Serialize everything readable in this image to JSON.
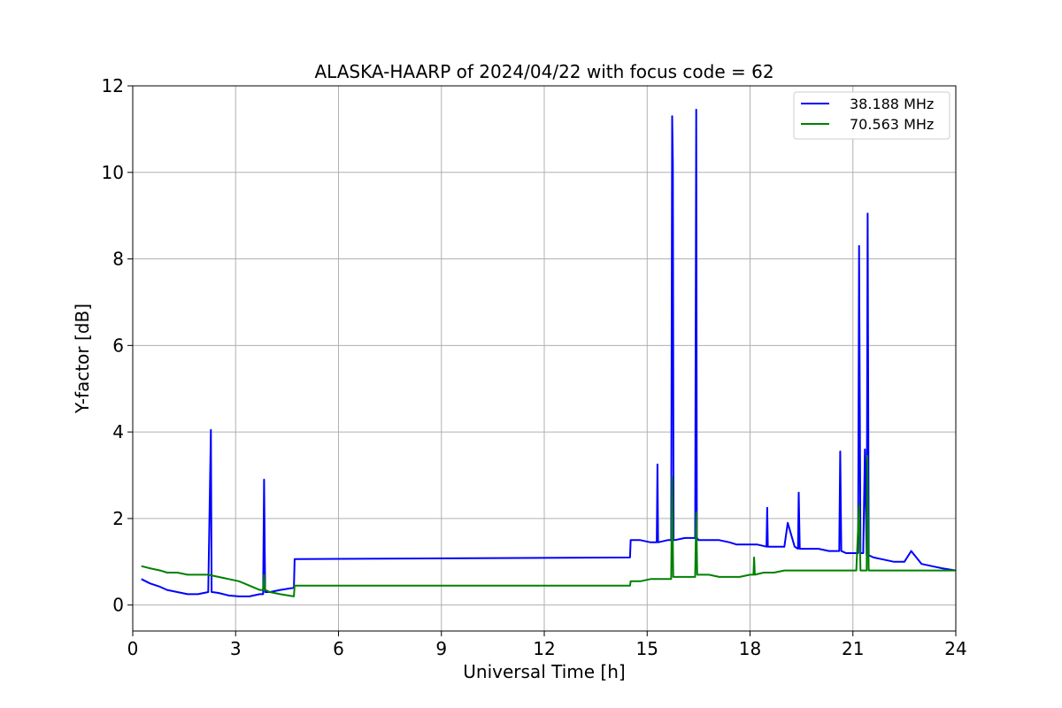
{
  "chart_data": {
    "type": "line",
    "title": "ALASKA-HAARP of 2024/04/22 with focus code = 62",
    "xlabel": "Universal Time [h]",
    "ylabel": "Y-factor [dB]",
    "xlim": [
      0,
      24
    ],
    "ylim": [
      -0.6,
      12
    ],
    "xticks": [
      0,
      3,
      6,
      9,
      12,
      15,
      18,
      21,
      24
    ],
    "yticks": [
      0,
      2,
      4,
      6,
      8,
      10,
      12
    ],
    "grid": true,
    "legend_position": "top-right",
    "series": [
      {
        "name": "38.188 MHz",
        "color": "#0000ff",
        "x": [
          0.25,
          0.5,
          0.8,
          1.0,
          1.3,
          1.6,
          1.9,
          2.2,
          2.28,
          2.3,
          2.32,
          2.5,
          2.8,
          3.1,
          3.4,
          3.7,
          3.8,
          3.83,
          3.86,
          4.0,
          4.3,
          4.7,
          4.72,
          14.5,
          14.52,
          14.8,
          15.1,
          15.28,
          15.3,
          15.32,
          15.6,
          15.7,
          15.73,
          15.75,
          15.77,
          15.8,
          16.1,
          16.4,
          16.43,
          16.45,
          16.5,
          16.8,
          17.1,
          17.4,
          17.6,
          17.9,
          18.2,
          18.48,
          18.5,
          18.52,
          18.8,
          19.0,
          19.1,
          19.3,
          19.4,
          19.42,
          19.45,
          19.7,
          20.0,
          20.3,
          20.5,
          20.6,
          20.63,
          20.66,
          20.8,
          21.0,
          21.1,
          21.15,
          21.18,
          21.22,
          21.3,
          21.35,
          21.4,
          21.43,
          21.46,
          21.6,
          21.9,
          22.2,
          22.5,
          22.7,
          23.0,
          23.3,
          23.6,
          24.0
        ],
        "y": [
          0.6,
          0.5,
          0.42,
          0.35,
          0.3,
          0.25,
          0.25,
          0.3,
          4.05,
          0.3,
          0.3,
          0.28,
          0.22,
          0.2,
          0.2,
          0.25,
          0.25,
          2.9,
          0.3,
          0.3,
          0.35,
          0.4,
          1.06,
          1.1,
          1.5,
          1.5,
          1.45,
          1.45,
          3.25,
          1.45,
          1.5,
          1.5,
          11.3,
          10.2,
          1.5,
          1.5,
          1.55,
          1.55,
          11.45,
          1.55,
          1.5,
          1.5,
          1.5,
          1.45,
          1.4,
          1.4,
          1.4,
          1.35,
          2.25,
          1.35,
          1.35,
          1.35,
          1.9,
          1.35,
          1.3,
          2.6,
          1.3,
          1.3,
          1.3,
          1.25,
          1.25,
          1.25,
          3.55,
          1.25,
          1.2,
          1.2,
          1.2,
          1.2,
          8.3,
          1.2,
          1.2,
          3.6,
          1.15,
          9.05,
          1.15,
          1.1,
          1.05,
          1.0,
          1.0,
          1.25,
          0.95,
          0.9,
          0.85,
          0.8
        ]
      },
      {
        "name": "70.563 MHz",
        "color": "#008000",
        "x": [
          0.25,
          0.5,
          0.8,
          1.0,
          1.3,
          1.6,
          1.9,
          2.2,
          2.5,
          2.8,
          3.1,
          3.4,
          3.7,
          3.8,
          3.83,
          3.86,
          4.0,
          4.3,
          4.7,
          4.72,
          14.5,
          14.52,
          14.8,
          15.1,
          15.4,
          15.7,
          15.73,
          15.76,
          16.0,
          16.4,
          16.43,
          16.46,
          16.8,
          17.1,
          17.4,
          17.7,
          18.0,
          18.1,
          18.12,
          18.14,
          18.4,
          18.7,
          19.0,
          19.3,
          19.6,
          19.9,
          20.2,
          20.5,
          20.8,
          21.1,
          21.18,
          21.22,
          21.3,
          21.4,
          21.42,
          21.46,
          21.7,
          22.0,
          22.3,
          22.6,
          22.9,
          23.2,
          23.5,
          23.8,
          24.0
        ],
        "y": [
          0.9,
          0.85,
          0.8,
          0.75,
          0.75,
          0.7,
          0.7,
          0.7,
          0.65,
          0.6,
          0.55,
          0.45,
          0.35,
          0.35,
          0.7,
          0.35,
          0.3,
          0.25,
          0.2,
          0.45,
          0.45,
          0.55,
          0.55,
          0.6,
          0.6,
          0.6,
          2.95,
          0.65,
          0.65,
          0.65,
          2.15,
          0.7,
          0.7,
          0.65,
          0.65,
          0.65,
          0.7,
          0.7,
          1.1,
          0.7,
          0.75,
          0.75,
          0.8,
          0.8,
          0.8,
          0.8,
          0.8,
          0.8,
          0.8,
          0.8,
          2.3,
          0.8,
          0.8,
          0.8,
          3.45,
          0.8,
          0.8,
          0.8,
          0.8,
          0.8,
          0.8,
          0.8,
          0.8,
          0.8,
          0.8
        ]
      }
    ]
  }
}
